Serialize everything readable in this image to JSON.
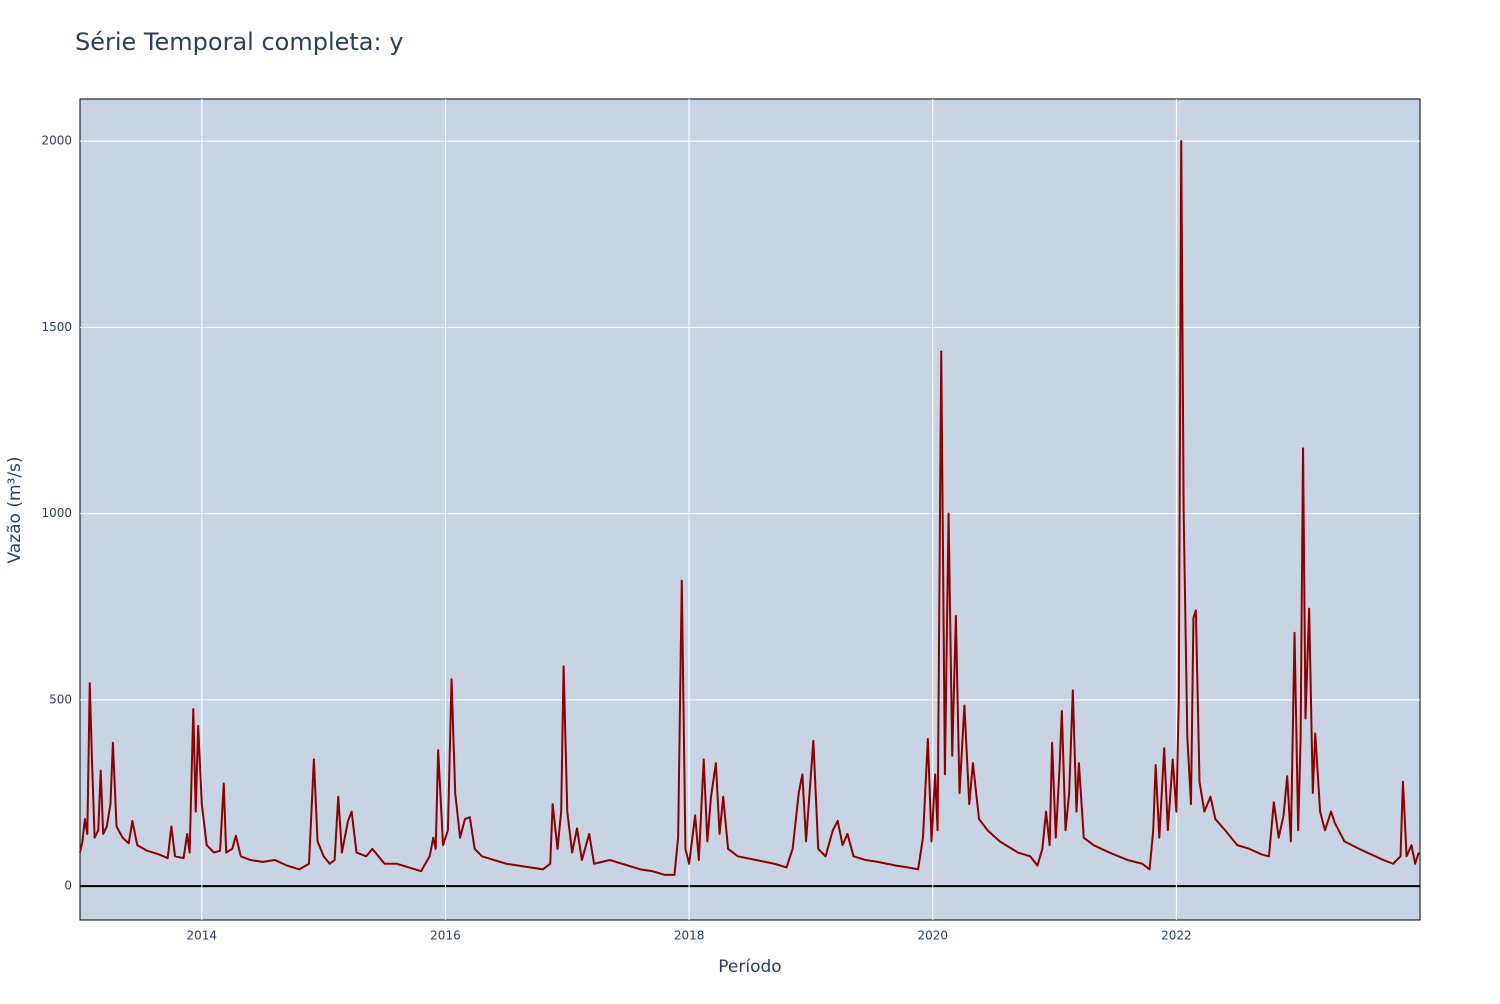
{
  "chart_data": {
    "type": "line",
    "title": "Série Temporal completa: y",
    "x_label": "Período",
    "y_label": "Vazão (m³/s)",
    "xlim": [
      2013.0,
      2024.0
    ],
    "xticks": [
      2014,
      2016,
      2018,
      2020,
      2022
    ],
    "ylim": [
      -91,
      2113
    ],
    "yticks": [
      0,
      500,
      1000,
      1500,
      2000
    ],
    "grid": true,
    "series": [
      {
        "color": "#8b0000",
        "x": [
          2013.0,
          2013.02,
          2013.04,
          2013.06,
          2013.08,
          2013.1,
          2013.12,
          2013.15,
          2013.17,
          2013.19,
          2013.22,
          2013.25,
          2013.27,
          2013.3,
          2013.35,
          2013.4,
          2013.43,
          2013.47,
          2013.55,
          2013.65,
          2013.72,
          2013.75,
          2013.78,
          2013.85,
          2013.88,
          2013.9,
          2013.93,
          2013.95,
          2013.97,
          2014.0,
          2014.04,
          2014.1,
          2014.15,
          2014.18,
          2014.2,
          2014.25,
          2014.28,
          2014.32,
          2014.4,
          2014.5,
          2014.6,
          2014.7,
          2014.8,
          2014.88,
          2014.92,
          2014.95,
          2015.0,
          2015.05,
          2015.09,
          2015.12,
          2015.15,
          2015.2,
          2015.23,
          2015.27,
          2015.35,
          2015.4,
          2015.5,
          2015.6,
          2015.7,
          2015.8,
          2015.87,
          2015.9,
          2015.92,
          2015.94,
          2015.98,
          2016.02,
          2016.05,
          2016.08,
          2016.12,
          2016.16,
          2016.2,
          2016.24,
          2016.3,
          2016.4,
          2016.5,
          2016.6,
          2016.7,
          2016.8,
          2016.86,
          2016.88,
          2016.92,
          2016.95,
          2016.97,
          2017.0,
          2017.04,
          2017.08,
          2017.12,
          2017.18,
          2017.22,
          2017.35,
          2017.5,
          2017.6,
          2017.7,
          2017.8,
          2017.88,
          2017.91,
          2017.94,
          2017.97,
          2018.0,
          2018.05,
          2018.08,
          2018.12,
          2018.15,
          2018.18,
          2018.22,
          2018.25,
          2018.28,
          2018.32,
          2018.4,
          2018.55,
          2018.7,
          2018.8,
          2018.85,
          2018.9,
          2018.93,
          2018.96,
          2019.02,
          2019.06,
          2019.12,
          2019.18,
          2019.22,
          2019.26,
          2019.3,
          2019.35,
          2019.45,
          2019.55,
          2019.7,
          2019.8,
          2019.88,
          2019.92,
          2019.96,
          2019.99,
          2020.02,
          2020.04,
          2020.07,
          2020.1,
          2020.13,
          2020.16,
          2020.19,
          2020.22,
          2020.26,
          2020.3,
          2020.33,
          2020.38,
          2020.45,
          2020.55,
          2020.7,
          2020.8,
          2020.86,
          2020.9,
          2020.93,
          2020.96,
          2020.98,
          2021.01,
          2021.04,
          2021.06,
          2021.09,
          2021.12,
          2021.15,
          2021.18,
          2021.2,
          2021.24,
          2021.32,
          2021.45,
          2021.6,
          2021.72,
          2021.78,
          2021.81,
          2021.83,
          2021.86,
          2021.9,
          2021.93,
          2021.97,
          2022.0,
          2022.02,
          2022.04,
          2022.06,
          2022.09,
          2022.12,
          2022.14,
          2022.16,
          2022.19,
          2022.23,
          2022.28,
          2022.32,
          2022.4,
          2022.5,
          2022.6,
          2022.7,
          2022.76,
          2022.8,
          2022.84,
          2022.88,
          2022.91,
          2022.94,
          2022.97,
          2023.0,
          2023.02,
          2023.04,
          2023.06,
          2023.09,
          2023.12,
          2023.14,
          2023.18,
          2023.22,
          2023.27,
          2023.3,
          2023.38,
          2023.5,
          2023.6,
          2023.7,
          2023.78,
          2023.84,
          2023.86,
          2023.89,
          2023.93,
          2023.96,
          2023.99
        ],
        "values": [
          90,
          120,
          180,
          140,
          545,
          320,
          130,
          150,
          310,
          140,
          160,
          220,
          385,
          160,
          130,
          115,
          175,
          110,
          95,
          85,
          75,
          160,
          80,
          75,
          140,
          90,
          475,
          200,
          430,
          220,
          110,
          90,
          95,
          275,
          90,
          100,
          135,
          80,
          70,
          65,
          70,
          55,
          45,
          60,
          340,
          120,
          80,
          60,
          70,
          240,
          90,
          175,
          200,
          90,
          80,
          100,
          60,
          60,
          50,
          40,
          80,
          130,
          100,
          365,
          110,
          150,
          555,
          250,
          130,
          180,
          185,
          100,
          80,
          70,
          60,
          55,
          50,
          45,
          60,
          220,
          100,
          200,
          590,
          200,
          90,
          155,
          70,
          140,
          60,
          70,
          55,
          45,
          40,
          30,
          30,
          130,
          820,
          100,
          60,
          190,
          70,
          340,
          120,
          240,
          330,
          140,
          240,
          100,
          80,
          70,
          60,
          50,
          100,
          250,
          300,
          120,
          390,
          100,
          80,
          150,
          175,
          110,
          140,
          80,
          70,
          65,
          55,
          50,
          45,
          130,
          395,
          120,
          300,
          150,
          1435,
          300,
          1000,
          350,
          725,
          250,
          485,
          220,
          330,
          180,
          150,
          120,
          90,
          80,
          55,
          100,
          200,
          110,
          385,
          130,
          310,
          470,
          150,
          250,
          525,
          200,
          330,
          130,
          110,
          90,
          70,
          60,
          45,
          150,
          325,
          130,
          370,
          150,
          340,
          200,
          500,
          2000,
          1000,
          400,
          220,
          720,
          740,
          280,
          200,
          240,
          180,
          150,
          110,
          100,
          85,
          80,
          225,
          130,
          190,
          295,
          120,
          680,
          150,
          400,
          1175,
          450,
          745,
          250,
          410,
          200,
          150,
          200,
          170,
          120,
          100,
          85,
          70,
          60,
          80,
          280,
          80,
          110,
          60,
          90
        ]
      }
    ]
  }
}
